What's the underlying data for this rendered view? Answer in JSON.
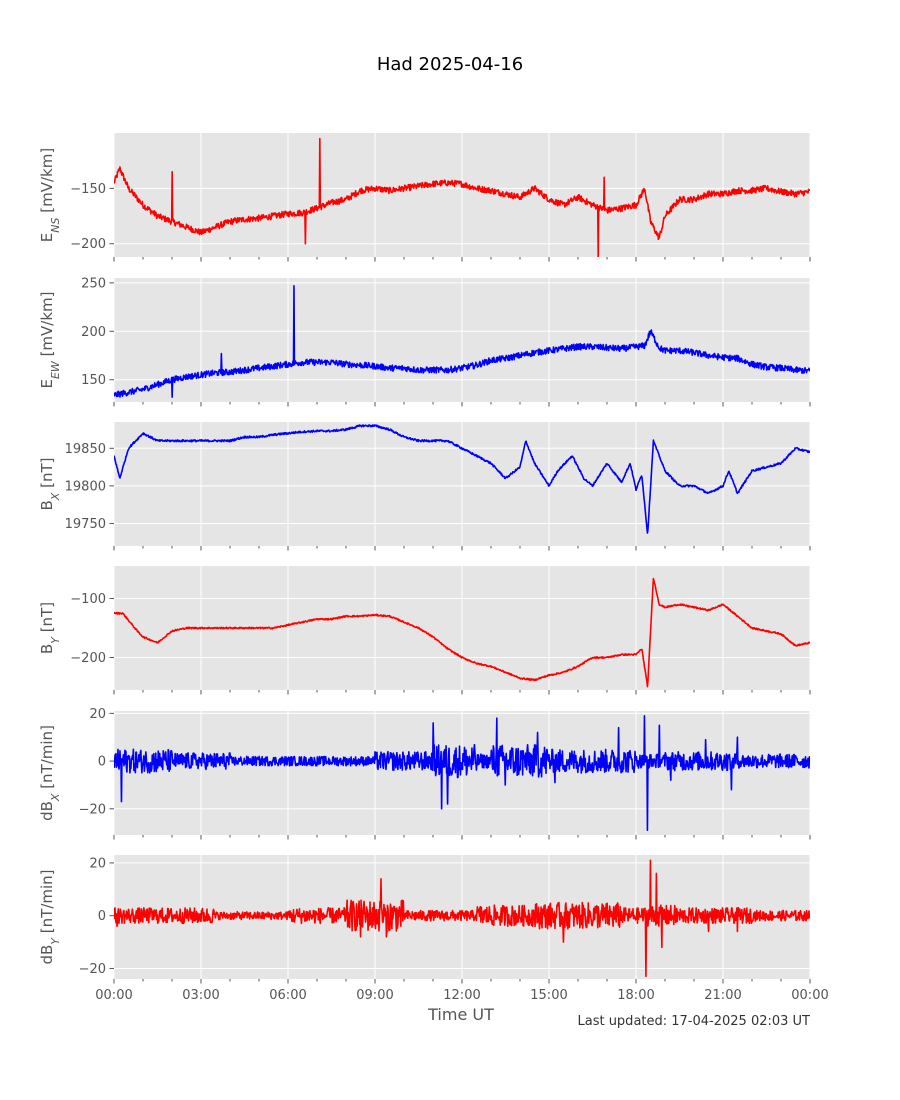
{
  "title": "Had 2025-04-16",
  "xlabel": "Time UT",
  "footer": "Last updated: 17-04-2025 02:03 UT",
  "colors": {
    "red": "#ff0000",
    "blue": "#0000ff",
    "panel_bg": "#e5e5e5",
    "grid": "#ffffff"
  },
  "chart_data": [
    {
      "type": "line",
      "ylabel": "E_NS [mV/km]",
      "ylabel_main": "E",
      "ylabel_sub": "NS",
      "ylabel_unit": " [mV/km]",
      "color": "#ff0000",
      "ylim": [
        -212,
        -100
      ],
      "yticks": [
        -200,
        -150
      ],
      "ytick_labels": [
        "−200",
        "−150"
      ],
      "x_hours": [
        0,
        0.2,
        0.5,
        1,
        1.5,
        2,
        2.5,
        3,
        3.5,
        4,
        4.5,
        5,
        5.5,
        6,
        6.5,
        7,
        7.5,
        8,
        8.5,
        9,
        9.5,
        10,
        10.5,
        11,
        11.5,
        12,
        12.5,
        13,
        13.5,
        14,
        14.5,
        15,
        15.5,
        16,
        16.5,
        17,
        17.5,
        18,
        18.3,
        18.5,
        18.8,
        19,
        19.5,
        20,
        20.5,
        21,
        21.5,
        22,
        22.5,
        23,
        23.5,
        24
      ],
      "y": [
        -145,
        -132,
        -150,
        -165,
        -175,
        -180,
        -185,
        -190,
        -185,
        -180,
        -178,
        -177,
        -175,
        -173,
        -172,
        -168,
        -163,
        -160,
        -152,
        -150,
        -152,
        -150,
        -148,
        -146,
        -145,
        -146,
        -150,
        -152,
        -155,
        -158,
        -150,
        -160,
        -165,
        -158,
        -165,
        -170,
        -168,
        -165,
        -150,
        -180,
        -195,
        -175,
        -160,
        -160,
        -155,
        -155,
        -152,
        -152,
        -150,
        -153,
        -155,
        -153
      ],
      "spikes": [
        [
          2.0,
          -135
        ],
        [
          6.6,
          -200
        ],
        [
          7.1,
          -105
        ],
        [
          16.7,
          -212
        ],
        [
          16.9,
          -140
        ]
      ]
    },
    {
      "type": "line",
      "ylabel": "E_EW [mV/km]",
      "ylabel_main": "E",
      "ylabel_sub": "EW",
      "ylabel_unit": " [mV/km]",
      "color": "#0000ff",
      "ylim": [
        127,
        255
      ],
      "yticks": [
        150,
        200,
        250
      ],
      "ytick_labels": [
        "150",
        "200",
        "250"
      ],
      "x_hours": [
        0,
        0.5,
        1,
        1.5,
        2,
        2.5,
        3,
        3.5,
        4,
        4.5,
        5,
        5.5,
        6,
        6.5,
        7,
        7.5,
        8,
        8.5,
        9,
        9.5,
        10,
        10.5,
        11,
        11.5,
        12,
        12.5,
        13,
        13.5,
        14,
        14.5,
        15,
        15.5,
        16,
        16.5,
        17,
        17.5,
        18,
        18.3,
        18.5,
        18.8,
        19,
        19.5,
        20,
        20.5,
        21,
        21.5,
        22,
        22.5,
        23,
        23.5,
        24
      ],
      "y": [
        134,
        137,
        140,
        145,
        150,
        153,
        155,
        157,
        158,
        160,
        162,
        164,
        166,
        168,
        168,
        168,
        166,
        165,
        164,
        162,
        162,
        160,
        160,
        160,
        162,
        165,
        170,
        172,
        175,
        178,
        180,
        182,
        184,
        184,
        183,
        182,
        184,
        185,
        200,
        183,
        180,
        180,
        178,
        175,
        173,
        172,
        166,
        163,
        162,
        160,
        159
      ],
      "spikes": [
        [
          6.2,
          247
        ],
        [
          3.7,
          177
        ],
        [
          2.0,
          132
        ]
      ]
    },
    {
      "type": "line",
      "ylabel": "B_X [nT]",
      "ylabel_main": "B",
      "ylabel_sub": "X",
      "ylabel_unit": " [nT]",
      "color": "#0000ff",
      "ylim": [
        1972,
        1988.5
      ],
      "scale_note": "values in units of 10 nT",
      "yticks": [
        1975,
        1980,
        1985
      ],
      "ytick_labels": [
        "19750",
        "19800",
        "19850"
      ],
      "x_hours": [
        0,
        0.2,
        0.5,
        1,
        1.5,
        2,
        2.5,
        3,
        3.5,
        4,
        4.5,
        5,
        5.5,
        6,
        6.5,
        7,
        7.5,
        8,
        8.5,
        9,
        9.5,
        10,
        10.5,
        11,
        11.5,
        12,
        12.5,
        13,
        13.5,
        14,
        14.2,
        14.5,
        15,
        15.3,
        15.8,
        16.2,
        16.5,
        17,
        17.5,
        17.8,
        18,
        18.2,
        18.4,
        18.6,
        18.8,
        19,
        19.5,
        20,
        20.5,
        21,
        21.2,
        21.5,
        22,
        22.5,
        23,
        23.5,
        24
      ],
      "y": [
        1984,
        1981,
        1985,
        1987,
        1986,
        1986,
        1986,
        1986,
        1986,
        1986,
        1986.5,
        1986.5,
        1986.8,
        1987,
        1987.2,
        1987.3,
        1987.3,
        1987.5,
        1988,
        1988,
        1987.5,
        1986.5,
        1986,
        1986,
        1986,
        1985,
        1984,
        1983,
        1981,
        1982.5,
        1986,
        1983,
        1980,
        1982,
        1984,
        1981,
        1980,
        1983,
        1980.5,
        1983,
        1979.5,
        1981.5,
        1973.5,
        1986,
        1984,
        1982,
        1980,
        1980,
        1979,
        1980,
        1982,
        1979,
        1982,
        1982.5,
        1983,
        1985,
        1984.5
      ]
    },
    {
      "type": "line",
      "ylabel": "B_Y [nT]",
      "ylabel_main": "B",
      "ylabel_sub": "Y",
      "ylabel_unit": " [nT]",
      "color": "#ff0000",
      "ylim": [
        -255,
        -45
      ],
      "yticks": [
        -200,
        -100
      ],
      "ytick_labels": [
        "−200",
        "−100"
      ],
      "x_hours": [
        0,
        0.3,
        0.8,
        1,
        1.5,
        2,
        2.5,
        3,
        3.5,
        4,
        4.5,
        5,
        5.5,
        6,
        6.5,
        7,
        7.5,
        8,
        8.5,
        9,
        9.5,
        10,
        10.5,
        11,
        11.5,
        12,
        12.5,
        13,
        13.5,
        14,
        14.5,
        15,
        15.5,
        16,
        16.5,
        17,
        17.5,
        18,
        18.2,
        18.4,
        18.6,
        18.8,
        19,
        19.5,
        20,
        20.5,
        21,
        21.5,
        22,
        22.5,
        23,
        23.5,
        24
      ],
      "y": [
        -125,
        -125,
        -155,
        -165,
        -175,
        -155,
        -150,
        -150,
        -150,
        -150,
        -150,
        -150,
        -150,
        -145,
        -140,
        -135,
        -135,
        -130,
        -130,
        -128,
        -130,
        -140,
        -150,
        -165,
        -185,
        -200,
        -210,
        -215,
        -225,
        -235,
        -238,
        -230,
        -225,
        -215,
        -200,
        -200,
        -195,
        -195,
        -185,
        -250,
        -65,
        -110,
        -115,
        -110,
        -115,
        -120,
        -110,
        -130,
        -150,
        -155,
        -160,
        -180,
        -175
      ]
    },
    {
      "type": "line",
      "ylabel": "dB_X [nT/min]",
      "ylabel_main": "dB",
      "ylabel_sub": "X",
      "ylabel_unit": " [nT/min]",
      "color": "#0000ff",
      "ylim": [
        -31,
        21
      ],
      "yticks": [
        -20,
        0,
        20
      ],
      "ytick_labels": [
        "−20",
        "0",
        "20"
      ],
      "bursts": [
        [
          0.0,
          2.0,
          5
        ],
        [
          2.0,
          4.0,
          3.5
        ],
        [
          4.0,
          9.0,
          2
        ],
        [
          9.0,
          11.0,
          4
        ],
        [
          11.0,
          12.5,
          7
        ],
        [
          12.5,
          13.0,
          3
        ],
        [
          13.0,
          15.0,
          7
        ],
        [
          15.0,
          18.0,
          5
        ],
        [
          18.0,
          19.0,
          3
        ],
        [
          19.0,
          21.5,
          4
        ],
        [
          21.5,
          24.0,
          3
        ]
      ],
      "spikes": [
        [
          0.25,
          -17
        ],
        [
          11.0,
          16
        ],
        [
          11.3,
          -20
        ],
        [
          11.5,
          -18
        ],
        [
          13.2,
          18
        ],
        [
          13.5,
          -10
        ],
        [
          14.6,
          12
        ],
        [
          15.2,
          -9
        ],
        [
          17.4,
          14
        ],
        [
          18.3,
          19
        ],
        [
          18.4,
          -29
        ],
        [
          18.8,
          15
        ],
        [
          19.2,
          -8
        ],
        [
          20.4,
          9
        ],
        [
          21.3,
          -12
        ],
        [
          21.5,
          10
        ]
      ]
    },
    {
      "type": "line",
      "ylabel": "dB_Y [nT/min]",
      "ylabel_main": "dB",
      "ylabel_sub": "Y",
      "ylabel_unit": " [nT/min]",
      "color": "#ff0000",
      "ylim": [
        -24,
        23
      ],
      "yticks": [
        -20,
        0,
        20
      ],
      "ytick_labels": [
        "−20",
        "0",
        "20"
      ],
      "bursts": [
        [
          0.0,
          3.5,
          3
        ],
        [
          3.5,
          6.0,
          1.5
        ],
        [
          6.0,
          8.0,
          3
        ],
        [
          8.0,
          10.0,
          6
        ],
        [
          10.0,
          12.5,
          2
        ],
        [
          12.5,
          14.5,
          4
        ],
        [
          14.5,
          17.5,
          5
        ],
        [
          17.5,
          18.3,
          3
        ],
        [
          18.3,
          19.5,
          4
        ],
        [
          19.5,
          22.0,
          3
        ],
        [
          22.0,
          24.0,
          2
        ]
      ],
      "spikes": [
        [
          0.1,
          -4
        ],
        [
          8.5,
          -8
        ],
        [
          9.2,
          14
        ],
        [
          9.4,
          -8
        ],
        [
          15.5,
          -10
        ],
        [
          18.35,
          -23
        ],
        [
          18.5,
          21
        ],
        [
          18.7,
          16
        ],
        [
          18.9,
          -12
        ],
        [
          20.5,
          -6
        ],
        [
          21.5,
          -6
        ]
      ]
    }
  ],
  "xaxis": {
    "range_hours": [
      0,
      24
    ],
    "ticks_hours": [
      0,
      3,
      6,
      9,
      12,
      15,
      18,
      21,
      24
    ],
    "tick_labels": [
      "00:00",
      "03:00",
      "06:00",
      "09:00",
      "12:00",
      "15:00",
      "18:00",
      "21:00",
      "00:00"
    ]
  }
}
